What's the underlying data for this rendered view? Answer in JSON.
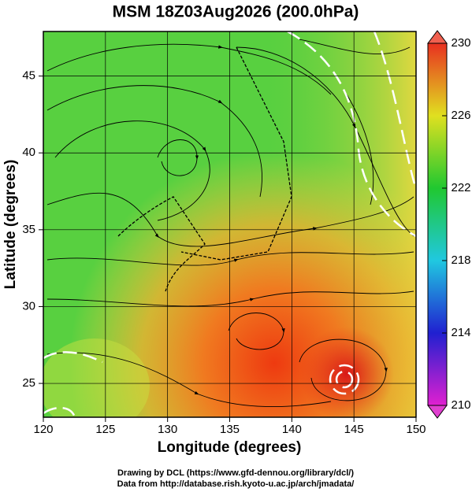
{
  "chart_data": {
    "type": "map",
    "title": "MSM 18Z03Aug2026 (200.0hPa)",
    "x_label": "Longitude (degrees)",
    "y_label": "Latitude  (degrees)",
    "xlim": [
      120,
      150
    ],
    "ylim": [
      22.8,
      47.9
    ],
    "xticks": [
      120,
      125,
      130,
      135,
      140,
      145,
      150
    ],
    "yticks": [
      25,
      30,
      35,
      40,
      45
    ],
    "grid": true,
    "colorbar": {
      "lim": [
        210,
        230
      ],
      "ticks": [
        210,
        214,
        218,
        222,
        226,
        230
      ]
    },
    "credits": [
      "Drawing by DCL (https://www.gfd-dennou.org/library/dcl/)",
      "Data from http://database.rish.kyoto-u.ac.jp/arch/jmadata/"
    ]
  }
}
